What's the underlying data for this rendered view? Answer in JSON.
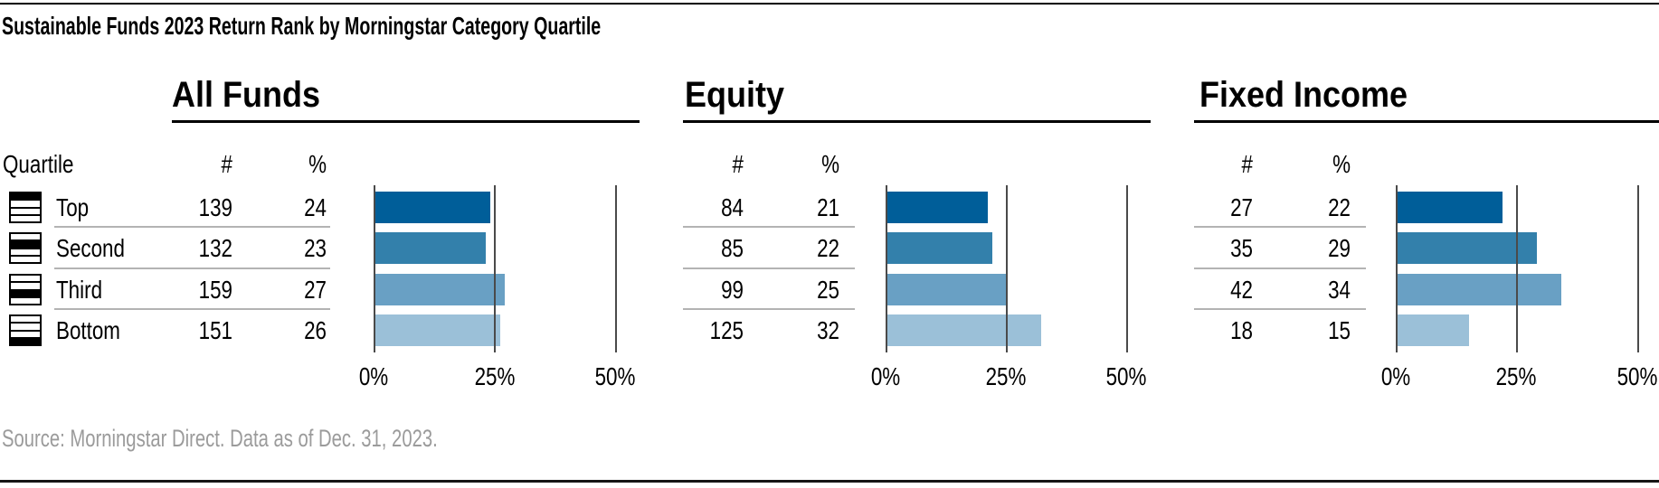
{
  "title": "Sustainable Funds 2023 Return Rank by Morningstar Category Quartile",
  "source": "Source: Morningstar Direct. Data as of Dec. 31, 2023.",
  "table": {
    "quartile_header": "Quartile",
    "count_header": "#",
    "pct_header": "%",
    "quartiles": [
      "Top",
      "Second",
      "Third",
      "Bottom"
    ]
  },
  "axis": {
    "ticks": [
      "0%",
      "25%",
      "50%"
    ],
    "min": 0,
    "max": 50
  },
  "colors": {
    "bars": [
      "#005E99",
      "#3380AB",
      "#69A0C4",
      "#9BC0D8"
    ],
    "gridline": "#4A4A4A",
    "row_rule": "#B3B3B3",
    "source_text": "#9B9B9B",
    "rules": "#000000"
  },
  "chart_data": [
    {
      "type": "bar",
      "orientation": "horizontal",
      "title": "All Funds",
      "categories": [
        "Top",
        "Second",
        "Third",
        "Bottom"
      ],
      "series": [
        {
          "name": "# of funds",
          "values": [
            139,
            132,
            159,
            151
          ]
        },
        {
          "name": "% of funds",
          "values": [
            24,
            23,
            27,
            26
          ]
        }
      ],
      "plotted_series": "% of funds",
      "xlim": [
        0,
        50
      ],
      "xticks": [
        "0%",
        "25%",
        "50%"
      ],
      "grid": "vertical"
    },
    {
      "type": "bar",
      "orientation": "horizontal",
      "title": "Equity",
      "categories": [
        "Top",
        "Second",
        "Third",
        "Bottom"
      ],
      "series": [
        {
          "name": "# of funds",
          "values": [
            84,
            85,
            99,
            125
          ]
        },
        {
          "name": "% of funds",
          "values": [
            21,
            22,
            25,
            32
          ]
        }
      ],
      "plotted_series": "% of funds",
      "xlim": [
        0,
        50
      ],
      "xticks": [
        "0%",
        "25%",
        "50%"
      ],
      "grid": "vertical"
    },
    {
      "type": "bar",
      "orientation": "horizontal",
      "title": "Fixed Income",
      "categories": [
        "Top",
        "Second",
        "Third",
        "Bottom"
      ],
      "series": [
        {
          "name": "# of funds",
          "values": [
            27,
            35,
            42,
            18
          ]
        },
        {
          "name": "% of funds",
          "values": [
            22,
            29,
            34,
            15
          ]
        }
      ],
      "plotted_series": "% of funds",
      "xlim": [
        0,
        50
      ],
      "xticks": [
        "0%",
        "25%",
        "50%"
      ],
      "grid": "vertical"
    }
  ]
}
